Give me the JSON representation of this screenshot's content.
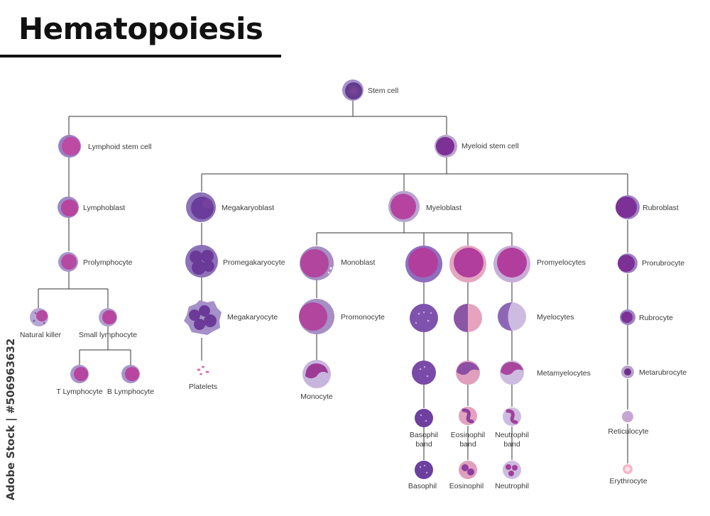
{
  "title": "Hematopoiesis",
  "watermark": "Adobe Stock | #506963632",
  "colors": {
    "line": "#333333",
    "halo": "#b9a3cf",
    "lymph": "#b3479f",
    "myeloid": "#7a2f8c",
    "mega": "#6a3d9a",
    "baso": "#6b3f9e",
    "eos": "#d79ab4",
    "neut": "#c6b0dc",
    "red": "#7a2f8c"
  },
  "cells": {
    "stem": "Stem cell",
    "lymphoid_stem": "Lymphoid stem cell",
    "myeloid_stem": "Myeloid stem cell",
    "lymphoblast": "Lymphoblast",
    "prolymphocyte": "Prolymphocyte",
    "natural_killer": "Natural killer",
    "small_lymphocyte": "Small lymphocyte",
    "t_lymphocyte": "T Lymphocyte",
    "b_lymphocyte": "B Lymphocyte",
    "megakaryoblast": "Megakaryoblast",
    "promegakaryocyte": "Promegakaryocyte",
    "megakaryocyte": "Megakaryocyte",
    "platelets": "Platelets",
    "myeloblast": "Myeloblast",
    "monoblast": "Monoblast",
    "promonocyte": "Promonocyte",
    "monocyte": "Monocyte",
    "promyelocytes": "Promyelocytes",
    "myelocytes": "Myelocytes",
    "metamyelocytes": "Metamyelocytes",
    "basophil_band": [
      "Basophil",
      "band"
    ],
    "eosinophil_band": [
      "Eosinophil",
      "band"
    ],
    "neutrophil_band": [
      "Neutrophil",
      "band"
    ],
    "basophil": "Basophil",
    "eosinophil": "Eosinophil",
    "neutrophil": "Neutrophil",
    "rubroblast": "Rubroblast",
    "prorubrocyte": "Prorubrocyte",
    "rubrocyte": "Rubrocyte",
    "metarubrocyte": "Metarubrocyte",
    "reticulocyte": "Reticulocyte",
    "erythrocyte": "Erythrocyte"
  }
}
